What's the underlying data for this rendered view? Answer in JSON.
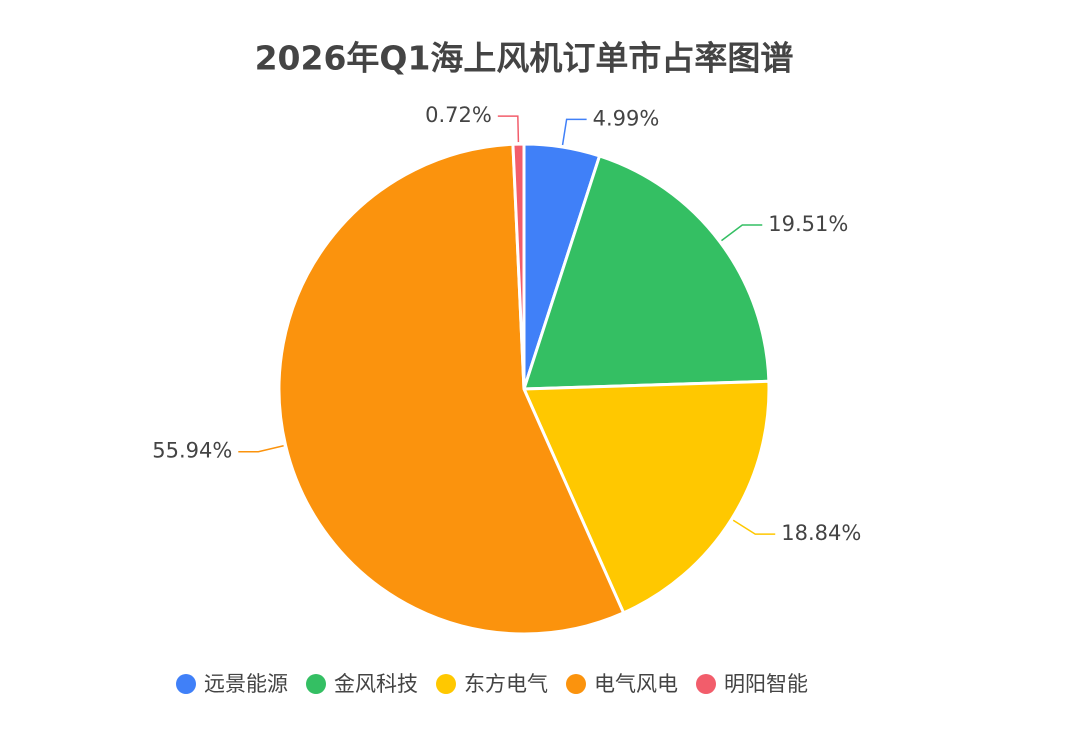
{
  "chart_data": {
    "type": "pie",
    "title": "2026年Q1海上风机订单市占率图谱",
    "categories": [
      "远景能源",
      "金风科技",
      "东方电气",
      "电气风电",
      "明阳智能"
    ],
    "values": [
      4.99,
      19.51,
      18.84,
      55.94,
      0.72
    ],
    "value_labels": [
      "4.99%",
      "19.51%",
      "18.84%",
      "55.94%",
      "0.72%"
    ],
    "colors": [
      "#4080f8",
      "#34bf63",
      "#ffc800",
      "#fb930d",
      "#f25d6b"
    ],
    "legend": "bottom"
  }
}
